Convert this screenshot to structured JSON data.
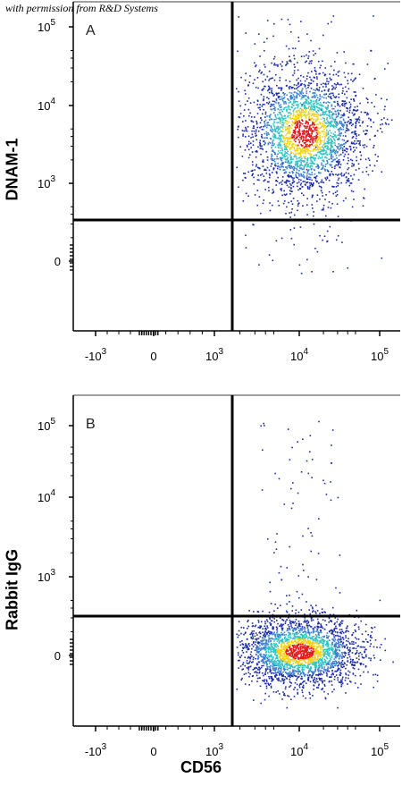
{
  "watermark": "with permission from R&D Systems",
  "x_axis_label": "CD56",
  "colors": {
    "low": "#1a2aa8",
    "mid": "#2ec4c4",
    "high_mid": "#f2d21a",
    "high": "#e31a1c",
    "quadrant_line": "#000000"
  },
  "chart_data": [
    {
      "type": "scatter",
      "panel_label": "A",
      "ylabel": "DNAM-1",
      "xlabel": "CD56",
      "x_scale": "biexponential",
      "y_scale": "biexponential",
      "x_ticks": [
        "-10^3",
        "0",
        "10^3",
        "10^4",
        "10^5"
      ],
      "y_ticks": [
        "0",
        "10^3",
        "10^4",
        "10^5"
      ],
      "quadrant_gate": {
        "x": 1500,
        "y": 500
      },
      "population": {
        "center_x": 12000,
        "center_y": 3500,
        "spread": "~1 decade",
        "color_scale": "density (blue to red)"
      },
      "outliers": "sparse events up to 10^5 on y and below the horizontal gate"
    },
    {
      "type": "scatter",
      "panel_label": "B",
      "ylabel": "Rabbit IgG",
      "xlabel": "CD56",
      "x_scale": "biexponential",
      "y_scale": "biexponential",
      "x_ticks": [
        "-10^3",
        "0",
        "10^3",
        "10^4",
        "10^5"
      ],
      "y_ticks": [
        "0",
        "10^3",
        "10^4",
        "10^5"
      ],
      "quadrant_gate": {
        "x": 1500,
        "y": 400
      },
      "population": {
        "center_x": 12000,
        "center_y": 50,
        "spread": "~1 decade",
        "color_scale": "density (blue to red)"
      },
      "outliers": "sparse events stretching vertically up to 10^5 around x≈10^4"
    }
  ]
}
